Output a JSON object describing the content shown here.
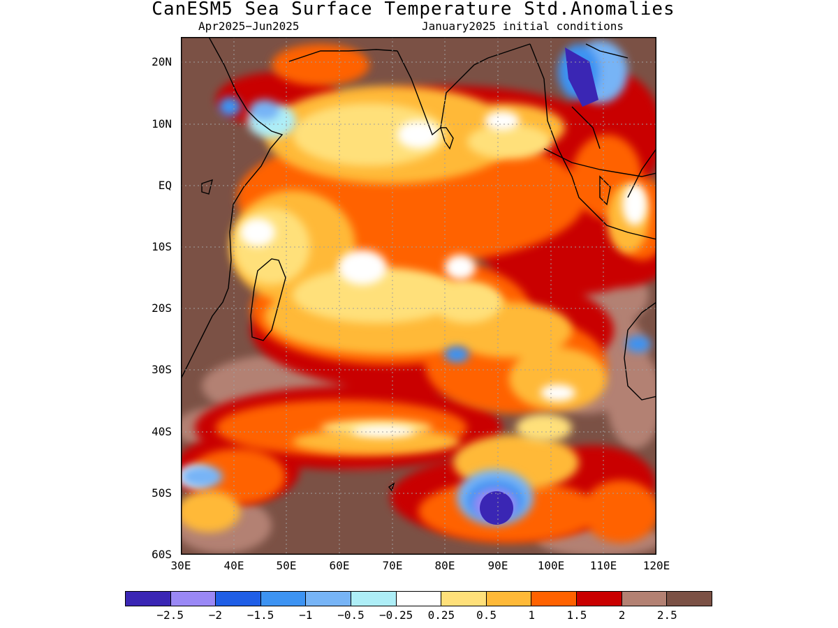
{
  "header": {
    "title": "CanESM5 Sea Surface Temperature Std.Anomalies",
    "period": "Apr2025−Jun2025",
    "initial_conditions": "January2025 initial conditions"
  },
  "map": {
    "region": "Indian Ocean",
    "lat_labels": [
      "20N",
      "10N",
      "EQ",
      "10S",
      "20S",
      "30S",
      "40S",
      "50S",
      "60S"
    ],
    "lon_labels": [
      "30E",
      "40E",
      "50E",
      "60E",
      "70E",
      "80E",
      "90E",
      "100E",
      "110E",
      "120E"
    ],
    "grid": true,
    "land_color": "#7b5145"
  },
  "colorbar": {
    "colors": [
      "#3a26b4",
      "#9a88f5",
      "#1f5ee6",
      "#3d93f2",
      "#77b4f6",
      "#aeeef7",
      "#ffffff",
      "#ffe07a",
      "#ffb938",
      "#ff6200",
      "#c90000",
      "#b38173",
      "#7b5145"
    ],
    "labels": [
      "−2.5",
      "−2",
      "−1.5",
      "−1",
      "−0.5",
      "−0.25",
      "0.25",
      "0.5",
      "1",
      "1.5",
      "2",
      "2.5"
    ]
  }
}
